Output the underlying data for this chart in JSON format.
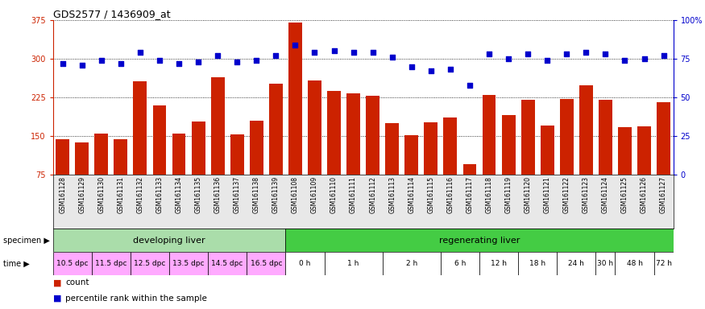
{
  "title": "GDS2577 / 1436909_at",
  "samples": [
    "GSM161128",
    "GSM161129",
    "GSM161130",
    "GSM161131",
    "GSM161132",
    "GSM161133",
    "GSM161134",
    "GSM161135",
    "GSM161136",
    "GSM161137",
    "GSM161138",
    "GSM161139",
    "GSM161108",
    "GSM161109",
    "GSM161110",
    "GSM161111",
    "GSM161112",
    "GSM161113",
    "GSM161114",
    "GSM161115",
    "GSM161116",
    "GSM161117",
    "GSM161118",
    "GSM161119",
    "GSM161120",
    "GSM161121",
    "GSM161122",
    "GSM161123",
    "GSM161124",
    "GSM161125",
    "GSM161126",
    "GSM161127"
  ],
  "counts": [
    144,
    137,
    155,
    144,
    256,
    210,
    154,
    178,
    264,
    153,
    179,
    252,
    370,
    258,
    237,
    232,
    228,
    175,
    152,
    176,
    186,
    96,
    230,
    191,
    221,
    170,
    222,
    248,
    220,
    167,
    168,
    215
  ],
  "percentile": [
    72,
    71,
    74,
    72,
    79,
    74,
    72,
    73,
    77,
    73,
    74,
    77,
    84,
    79,
    80,
    79,
    79,
    76,
    70,
    67,
    68,
    58,
    78,
    75,
    78,
    74,
    78,
    79,
    78,
    74,
    75,
    77
  ],
  "ylim_left": [
    75,
    375
  ],
  "ylim_right": [
    0,
    100
  ],
  "yticks_left": [
    75,
    150,
    225,
    300,
    375
  ],
  "yticks_right": [
    0,
    25,
    50,
    75,
    100
  ],
  "bar_color": "#cc2200",
  "dot_color": "#0000cc",
  "specimen_groups": [
    {
      "label": "developing liver",
      "start": 0,
      "end": 12,
      "color": "#aaddaa"
    },
    {
      "label": "regenerating liver",
      "start": 12,
      "end": 32,
      "color": "#44cc44"
    }
  ],
  "time_groups": [
    {
      "label": "10.5 dpc",
      "start": 0,
      "end": 2
    },
    {
      "label": "11.5 dpc",
      "start": 2,
      "end": 4
    },
    {
      "label": "12.5 dpc",
      "start": 4,
      "end": 6
    },
    {
      "label": "13.5 dpc",
      "start": 6,
      "end": 8
    },
    {
      "label": "14.5 dpc",
      "start": 8,
      "end": 10
    },
    {
      "label": "16.5 dpc",
      "start": 10,
      "end": 12
    },
    {
      "label": "0 h",
      "start": 12,
      "end": 14
    },
    {
      "label": "1 h",
      "start": 14,
      "end": 17
    },
    {
      "label": "2 h",
      "start": 17,
      "end": 20
    },
    {
      "label": "6 h",
      "start": 20,
      "end": 22
    },
    {
      "label": "12 h",
      "start": 22,
      "end": 24
    },
    {
      "label": "18 h",
      "start": 24,
      "end": 26
    },
    {
      "label": "24 h",
      "start": 26,
      "end": 28
    },
    {
      "label": "30 h",
      "start": 28,
      "end": 29
    },
    {
      "label": "48 h",
      "start": 29,
      "end": 31
    },
    {
      "label": "72 h",
      "start": 31,
      "end": 32
    }
  ],
  "time_color_dev": "#ffaaff",
  "time_color_reg": "#ffffff",
  "specimen_label": "specimen",
  "time_label": "time",
  "legend_count_label": "count",
  "legend_pct_label": "percentile rank within the sample"
}
